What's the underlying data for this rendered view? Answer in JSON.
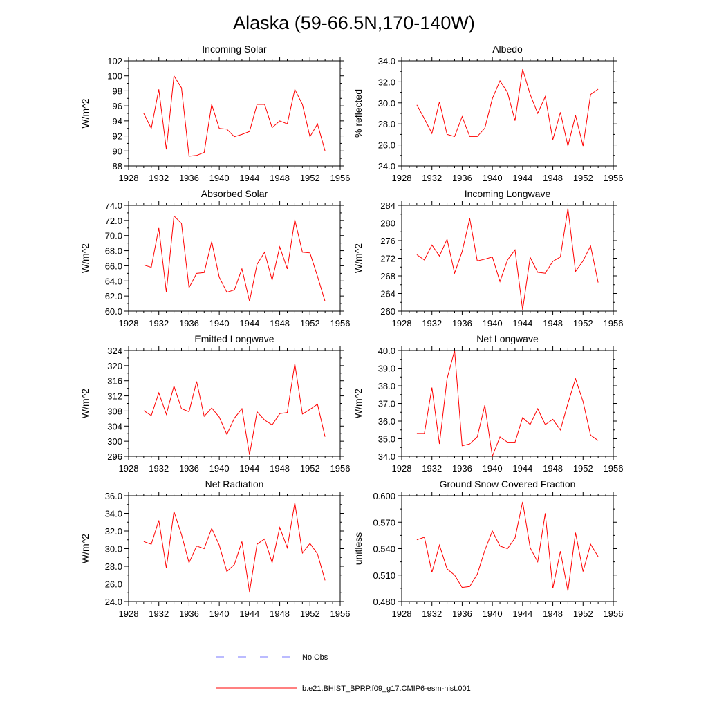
{
  "title": "Alaska (59-66.5N,170-140W)",
  "colors": {
    "model": "#ff0000",
    "obs": "#7777ff",
    "axis": "#000000"
  },
  "legend": {
    "entries": [
      {
        "label": "No Obs",
        "style": "dashed",
        "color": "#7777ff"
      },
      {
        "label": "b.e21.BHIST_BPRP.f09_g17.CMIP6-esm-hist.001",
        "style": "solid",
        "color": "#ff0000"
      }
    ]
  },
  "chart_data": [
    {
      "type": "line",
      "title": "Incoming Solar",
      "xlabel": "",
      "ylabel": "W/m^2",
      "xlim": [
        1928,
        1956
      ],
      "ylim": [
        88,
        102
      ],
      "xticks": [
        1928,
        1932,
        1936,
        1940,
        1944,
        1948,
        1952,
        1956
      ],
      "xtick_labels": [
        "1928",
        "1932",
        "1936",
        "1940",
        "1944",
        "1948",
        "1952",
        "1956"
      ],
      "yticks": [
        88,
        90,
        92,
        94,
        96,
        98,
        100,
        102
      ],
      "ytick_labels": [
        "88",
        "90",
        "92",
        "94",
        "96",
        "98",
        "100",
        "102"
      ],
      "series": [
        {
          "name": "b.e21.BHIST_BPRP.f09_g17.CMIP6-esm-hist.001",
          "x": [
            1930,
            1931,
            1932,
            1933,
            1934,
            1935,
            1936,
            1937,
            1938,
            1939,
            1940,
            1941,
            1942,
            1943,
            1944,
            1945,
            1946,
            1947,
            1948,
            1949,
            1950,
            1951,
            1952,
            1953,
            1954
          ],
          "y": [
            95.0,
            93.0,
            98.2,
            90.2,
            100.0,
            98.4,
            89.3,
            89.4,
            89.8,
            96.2,
            93.0,
            92.9,
            91.9,
            92.2,
            92.6,
            96.2,
            96.2,
            93.1,
            94.0,
            93.6,
            98.2,
            96.2,
            91.9,
            93.6,
            90.0
          ]
        }
      ]
    },
    {
      "type": "line",
      "title": "Albedo",
      "xlabel": "",
      "ylabel": "% reflected",
      "xlim": [
        1928,
        1956
      ],
      "ylim": [
        24,
        34
      ],
      "xticks": [
        1928,
        1932,
        1936,
        1940,
        1944,
        1948,
        1952,
        1956
      ],
      "xtick_labels": [
        "1928",
        "1932",
        "1936",
        "1940",
        "1944",
        "1948",
        "1952",
        "1956"
      ],
      "yticks": [
        24,
        26,
        28,
        30,
        32,
        34
      ],
      "ytick_labels": [
        "24.0",
        "26.0",
        "28.0",
        "30.0",
        "32.0",
        "34.0"
      ],
      "series": [
        {
          "name": "b.e21.BHIST_BPRP.f09_g17.CMIP6-esm-hist.001",
          "x": [
            1930,
            1931,
            1932,
            1933,
            1934,
            1935,
            1936,
            1937,
            1938,
            1939,
            1940,
            1941,
            1942,
            1943,
            1944,
            1945,
            1946,
            1947,
            1948,
            1949,
            1950,
            1951,
            1952,
            1953,
            1954
          ],
          "y": [
            29.8,
            28.5,
            27.1,
            30.1,
            27.0,
            26.8,
            28.7,
            26.8,
            26.8,
            27.6,
            30.4,
            32.1,
            31.0,
            28.3,
            33.2,
            30.8,
            29.0,
            30.6,
            26.5,
            29.1,
            25.9,
            28.8,
            25.9,
            30.8,
            31.3
          ]
        }
      ]
    },
    {
      "type": "line",
      "title": "Absorbed Solar",
      "xlabel": "",
      "ylabel": "W/m^2",
      "xlim": [
        1928,
        1956
      ],
      "ylim": [
        60,
        74
      ],
      "xticks": [
        1928,
        1932,
        1936,
        1940,
        1944,
        1948,
        1952,
        1956
      ],
      "xtick_labels": [
        "1928",
        "1932",
        "1936",
        "1940",
        "1944",
        "1948",
        "1952",
        "1956"
      ],
      "yticks": [
        60,
        62,
        64,
        66,
        68,
        70,
        72,
        74
      ],
      "ytick_labels": [
        "60.0",
        "62.0",
        "64.0",
        "66.0",
        "68.0",
        "70.0",
        "72.0",
        "74.0"
      ],
      "series": [
        {
          "name": "b.e21.BHIST_BPRP.f09_g17.CMIP6-esm-hist.001",
          "x": [
            1930,
            1931,
            1932,
            1933,
            1934,
            1935,
            1936,
            1937,
            1938,
            1939,
            1940,
            1941,
            1942,
            1943,
            1944,
            1945,
            1946,
            1947,
            1948,
            1949,
            1950,
            1951,
            1952,
            1953,
            1954
          ],
          "y": [
            66.1,
            65.8,
            71.0,
            62.5,
            72.6,
            71.6,
            63.1,
            65.0,
            65.1,
            69.2,
            64.5,
            62.5,
            62.8,
            65.6,
            61.3,
            66.2,
            67.8,
            64.1,
            68.5,
            65.6,
            72.1,
            67.8,
            67.7,
            64.6,
            61.3
          ]
        }
      ]
    },
    {
      "type": "line",
      "title": "Incoming Longwave",
      "xlabel": "",
      "ylabel": "W/m^2",
      "xlim": [
        1928,
        1956
      ],
      "ylim": [
        260,
        284
      ],
      "xticks": [
        1928,
        1932,
        1936,
        1940,
        1944,
        1948,
        1952,
        1956
      ],
      "xtick_labels": [
        "1928",
        "1932",
        "1936",
        "1940",
        "1944",
        "1948",
        "1952",
        "1956"
      ],
      "yticks": [
        260,
        264,
        268,
        272,
        276,
        280,
        284
      ],
      "ytick_labels": [
        "260",
        "264",
        "268",
        "272",
        "276",
        "280",
        "284"
      ],
      "series": [
        {
          "name": "b.e21.BHIST_BPRP.f09_g17.CMIP6-esm-hist.001",
          "x": [
            1930,
            1931,
            1932,
            1933,
            1934,
            1935,
            1936,
            1937,
            1938,
            1939,
            1940,
            1941,
            1942,
            1943,
            1944,
            1945,
            1946,
            1947,
            1948,
            1949,
            1950,
            1951,
            1952,
            1953,
            1954
          ],
          "y": [
            272.8,
            271.6,
            275.0,
            272.5,
            276.3,
            268.6,
            273.5,
            281.0,
            271.4,
            271.8,
            272.3,
            266.7,
            271.6,
            273.9,
            260.3,
            272.2,
            268.8,
            268.6,
            271.3,
            272.3,
            283.3,
            269.0,
            271.4,
            274.8,
            266.5
          ]
        }
      ]
    },
    {
      "type": "line",
      "title": "Emitted Longwave",
      "xlabel": "",
      "ylabel": "W/m^2",
      "xlim": [
        1928,
        1956
      ],
      "ylim": [
        296,
        324
      ],
      "xticks": [
        1928,
        1932,
        1936,
        1940,
        1944,
        1948,
        1952,
        1956
      ],
      "xtick_labels": [
        "1928",
        "1932",
        "1936",
        "1940",
        "1944",
        "1948",
        "1952",
        "1956"
      ],
      "yticks": [
        296,
        300,
        304,
        308,
        312,
        316,
        320,
        324
      ],
      "ytick_labels": [
        "296",
        "300",
        "304",
        "308",
        "312",
        "316",
        "320",
        "324"
      ],
      "series": [
        {
          "name": "b.e21.BHIST_BPRP.f09_g17.CMIP6-esm-hist.001",
          "x": [
            1930,
            1931,
            1932,
            1933,
            1934,
            1935,
            1936,
            1937,
            1938,
            1939,
            1940,
            1941,
            1942,
            1943,
            1944,
            1945,
            1946,
            1947,
            1948,
            1949,
            1950,
            1951,
            1952,
            1953,
            1954
          ],
          "y": [
            308.1,
            306.8,
            312.8,
            307.1,
            314.6,
            308.6,
            307.8,
            315.8,
            306.6,
            308.8,
            306.4,
            301.8,
            306.1,
            308.6,
            296.4,
            307.8,
            305.6,
            304.3,
            307.3,
            307.6,
            320.5,
            307.2,
            308.4,
            309.8,
            301.2
          ]
        }
      ]
    },
    {
      "type": "line",
      "title": "Net Longwave",
      "xlabel": "",
      "ylabel": "W/m^2",
      "xlim": [
        1928,
        1956
      ],
      "ylim": [
        34,
        40
      ],
      "xticks": [
        1928,
        1932,
        1936,
        1940,
        1944,
        1948,
        1952,
        1956
      ],
      "xtick_labels": [
        "1928",
        "1932",
        "1936",
        "1940",
        "1944",
        "1948",
        "1952",
        "1956"
      ],
      "yticks": [
        34,
        35,
        36,
        37,
        38,
        39,
        40
      ],
      "ytick_labels": [
        "34.0",
        "35.0",
        "36.0",
        "37.0",
        "38.0",
        "39.0",
        "40.0"
      ],
      "series": [
        {
          "name": "b.e21.BHIST_BPRP.f09_g17.CMIP6-esm-hist.001",
          "x": [
            1930,
            1931,
            1932,
            1933,
            1934,
            1935,
            1936,
            1937,
            1938,
            1939,
            1940,
            1941,
            1942,
            1943,
            1944,
            1945,
            1946,
            1947,
            1948,
            1949,
            1950,
            1951,
            1952,
            1953,
            1954
          ],
          "y": [
            35.3,
            35.3,
            37.9,
            34.7,
            38.4,
            40.0,
            34.6,
            34.7,
            35.1,
            36.9,
            34.0,
            35.1,
            34.8,
            34.8,
            36.2,
            35.8,
            36.7,
            35.8,
            36.1,
            35.5,
            37.0,
            38.4,
            37.1,
            35.2,
            34.9
          ]
        }
      ]
    },
    {
      "type": "line",
      "title": "Net Radiation",
      "xlabel": "",
      "ylabel": "W/m^2",
      "xlim": [
        1928,
        1956
      ],
      "ylim": [
        24,
        36
      ],
      "xticks": [
        1928,
        1932,
        1936,
        1940,
        1944,
        1948,
        1952,
        1956
      ],
      "xtick_labels": [
        "1928",
        "1932",
        "1936",
        "1940",
        "1944",
        "1948",
        "1952",
        "1956"
      ],
      "yticks": [
        24,
        26,
        28,
        30,
        32,
        34,
        36
      ],
      "ytick_labels": [
        "24.0",
        "26.0",
        "28.0",
        "30.0",
        "32.0",
        "34.0",
        "36.0"
      ],
      "series": [
        {
          "name": "b.e21.BHIST_BPRP.f09_g17.CMIP6-esm-hist.001",
          "x": [
            1930,
            1931,
            1932,
            1933,
            1934,
            1935,
            1936,
            1937,
            1938,
            1939,
            1940,
            1941,
            1942,
            1943,
            1944,
            1945,
            1946,
            1947,
            1948,
            1949,
            1950,
            1951,
            1952,
            1953,
            1954
          ],
          "y": [
            30.8,
            30.5,
            33.2,
            27.8,
            34.2,
            31.6,
            28.4,
            30.3,
            30.0,
            32.3,
            30.4,
            27.4,
            28.2,
            30.8,
            25.1,
            30.5,
            31.1,
            28.4,
            32.4,
            30.1,
            35.2,
            29.5,
            30.6,
            29.4,
            26.4
          ]
        }
      ]
    },
    {
      "type": "line",
      "title": "Ground Snow Covered Fraction",
      "xlabel": "",
      "ylabel": "unitless",
      "xlim": [
        1928,
        1956
      ],
      "ylim": [
        0.48,
        0.6
      ],
      "xticks": [
        1928,
        1932,
        1936,
        1940,
        1944,
        1948,
        1952,
        1956
      ],
      "xtick_labels": [
        "1928",
        "1932",
        "1936",
        "1940",
        "1944",
        "1948",
        "1952",
        "1956"
      ],
      "yticks": [
        0.48,
        0.51,
        0.54,
        0.57,
        0.6
      ],
      "ytick_labels": [
        "0.480",
        "0.510",
        "0.540",
        "0.570",
        "0.600"
      ],
      "series": [
        {
          "name": "b.e21.BHIST_BPRP.f09_g17.CMIP6-esm-hist.001",
          "x": [
            1930,
            1931,
            1932,
            1933,
            1934,
            1935,
            1936,
            1937,
            1938,
            1939,
            1940,
            1941,
            1942,
            1943,
            1944,
            1945,
            1946,
            1947,
            1948,
            1949,
            1950,
            1951,
            1952,
            1953,
            1954
          ],
          "y": [
            0.55,
            0.553,
            0.513,
            0.544,
            0.517,
            0.51,
            0.496,
            0.497,
            0.511,
            0.538,
            0.56,
            0.543,
            0.54,
            0.552,
            0.593,
            0.541,
            0.525,
            0.58,
            0.495,
            0.537,
            0.492,
            0.558,
            0.514,
            0.545,
            0.531
          ]
        }
      ]
    }
  ]
}
